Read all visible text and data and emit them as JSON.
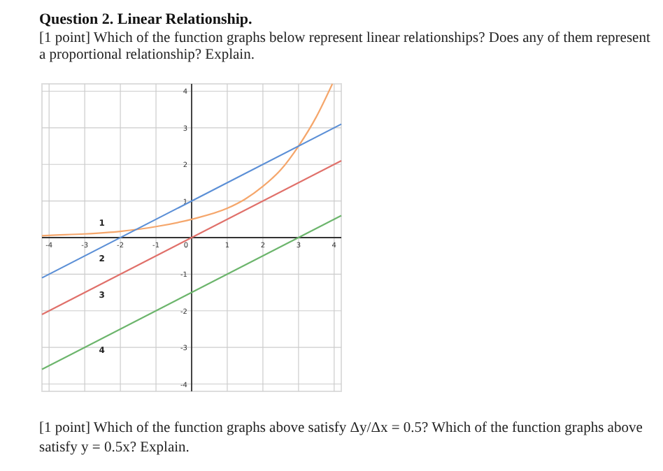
{
  "chart_data": {
    "type": "line",
    "title": "Question 2. Linear Relationship.",
    "subtitle": "[1 point] Which of the function graphs below represent linear relationships? Does any of them represent a proportional relationship? Explain.",
    "xlim": [
      -4.2,
      4.2
    ],
    "ylim": [
      -4.2,
      4.2
    ],
    "xticks": [
      -4,
      -3,
      -2,
      -1,
      0,
      1,
      2,
      3,
      4
    ],
    "yticks": [
      -4,
      -3,
      -2,
      -1,
      1,
      2,
      3,
      4
    ],
    "grid": true,
    "marker": "none",
    "line_style": "solid",
    "series": [
      {
        "name": "1",
        "color": "#f5a66b",
        "x": [
          -4.2,
          -4,
          -3,
          -2,
          -1,
          0,
          1,
          1.5,
          2,
          2.5,
          3,
          3.5,
          3.95
        ],
        "values": [
          0.05,
          0.06,
          0.1,
          0.17,
          0.3,
          0.5,
          0.8,
          1.05,
          1.4,
          1.85,
          2.5,
          3.3,
          4.2
        ]
      },
      {
        "name": "2",
        "color": "#5b8fd6",
        "x": [
          -4.2,
          4.2
        ],
        "values": [
          -1.1,
          3.1
        ]
      },
      {
        "name": "3",
        "color": "#e0706a",
        "x": [
          -4.2,
          4.2
        ],
        "values": [
          -2.1,
          2.1
        ]
      },
      {
        "name": "4",
        "color": "#6cb56c",
        "x": [
          -4.2,
          4.2
        ],
        "values": [
          -3.6,
          0.6
        ]
      }
    ],
    "annotations": [
      "[1 point] Which of the function graphs above satisfy Δy/Δx = 0.5? Which of the function graphs above satisfy y = 0.5x? Explain."
    ]
  }
}
